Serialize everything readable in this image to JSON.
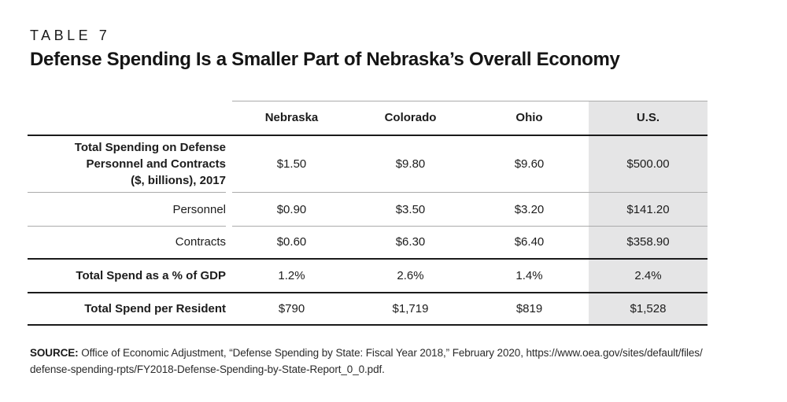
{
  "kicker": "TABLE 7",
  "chart_data": {
    "type": "table",
    "title": "Defense Spending Is a Smaller Part of Nebraska’s Overall Economy",
    "columns": [
      "",
      "Nebraska",
      "Colorado",
      "Ohio",
      "U.S."
    ],
    "highlighted_column": "U.S.",
    "rows": [
      {
        "label": "Total Spending on Defense Personnel and Contracts ($, billions), 2017",
        "label_lines": [
          "Total Spending on Defense",
          "Personnel and Contracts",
          "($, billions), 2017"
        ],
        "values": [
          "$1.50",
          "$9.80",
          "$9.60",
          "$500.00"
        ]
      },
      {
        "label": "Personnel",
        "values": [
          "$0.90",
          "$3.50",
          "$3.20",
          "$141.20"
        ]
      },
      {
        "label": "Contracts",
        "values": [
          "$0.60",
          "$6.30",
          "$6.40",
          "$358.90"
        ]
      },
      {
        "label": "Total Spend as a % of GDP",
        "values": [
          "1.2%",
          "2.6%",
          "1.4%",
          "2.4%"
        ]
      },
      {
        "label": "Total Spend per Resident",
        "values": [
          "$790",
          "$1,719",
          "$819",
          "$1,528"
        ]
      }
    ],
    "layout": {
      "highlight_color": "#e5e5e6",
      "thin_rule_color": "#ababab",
      "heavy_rule_color": "#1b1b1b"
    }
  },
  "source": {
    "label": "SOURCE:",
    "line1": "Office of Economic Adjustment, “Defense Spending by State: Fiscal Year 2018,” February 2020, https://www.oea.gov/sites/default/files/",
    "line2": "defense-spending-rpts/FY2018-Defense-Spending-by-State-Report_0_0.pdf."
  }
}
